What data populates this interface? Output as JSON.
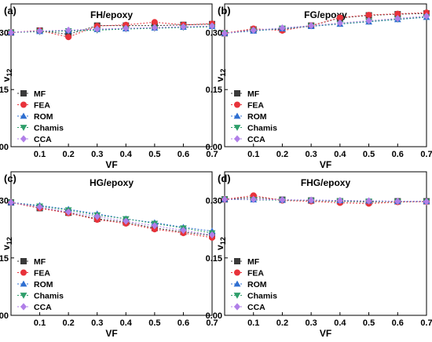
{
  "colors": {
    "MF": "#3a3a3a",
    "FEA": "#e8323a",
    "ROM": "#2f6fd1",
    "Chamis": "#2e9e6a",
    "CCA": "#b07fe8"
  },
  "chart_data": [
    {
      "type": "line",
      "panel": "(a)",
      "title": "FH/epoxy",
      "xlabel": "VF",
      "ylabel": "v12",
      "xlim": [
        0,
        0.7
      ],
      "ylim": [
        0,
        0.375
      ],
      "xticks": [
        "0.1",
        "0.2",
        "0.3",
        "0.4",
        "0.5",
        "0.6",
        "0.7"
      ],
      "yticks": [
        "0.00",
        "0.15",
        "0.30"
      ],
      "x": [
        0.0,
        0.1,
        0.2,
        0.3,
        0.4,
        0.5,
        0.6,
        0.7
      ],
      "legend_position": "bottom-left",
      "series": [
        {
          "name": "MF",
          "marker": "square",
          "values": [
            0.3,
            0.305,
            0.295,
            0.318,
            0.318,
            0.318,
            0.32,
            0.322
          ]
        },
        {
          "name": "FEA",
          "marker": "circle",
          "values": [
            0.3,
            0.305,
            0.288,
            0.317,
            0.32,
            0.327,
            0.32,
            0.323
          ]
        },
        {
          "name": "ROM",
          "marker": "triangle-up",
          "values": [
            0.3,
            0.303,
            0.305,
            0.308,
            0.31,
            0.312,
            0.314,
            0.316
          ]
        },
        {
          "name": "Chamis",
          "marker": "triangle-down",
          "values": [
            0.3,
            0.302,
            0.304,
            0.306,
            0.309,
            0.311,
            0.313,
            0.315
          ]
        },
        {
          "name": "CCA",
          "marker": "diamond",
          "values": [
            0.3,
            0.304,
            0.306,
            0.309,
            0.311,
            0.313,
            0.315,
            0.317
          ]
        }
      ]
    },
    {
      "type": "line",
      "panel": "(b)",
      "title": "FG/epoxy",
      "xlabel": "VF",
      "ylabel": "v12",
      "xlim": [
        0,
        0.7
      ],
      "ylim": [
        0,
        0.375
      ],
      "xticks": [
        "0.1",
        "0.2",
        "0.3",
        "0.4",
        "0.5",
        "0.6",
        "0.7"
      ],
      "yticks": [
        "0.00",
        "0.15",
        "0.30"
      ],
      "x": [
        0.0,
        0.1,
        0.2,
        0.3,
        0.4,
        0.5,
        0.6,
        0.7
      ],
      "legend_position": "bottom-left",
      "series": [
        {
          "name": "MF",
          "marker": "square",
          "values": [
            0.298,
            0.308,
            0.308,
            0.318,
            0.338,
            0.345,
            0.348,
            0.35
          ]
        },
        {
          "name": "FEA",
          "marker": "circle",
          "values": [
            0.298,
            0.31,
            0.305,
            0.318,
            0.339,
            0.346,
            0.349,
            0.352
          ]
        },
        {
          "name": "ROM",
          "marker": "triangle-up",
          "values": [
            0.298,
            0.304,
            0.31,
            0.316,
            0.322,
            0.328,
            0.334,
            0.34
          ]
        },
        {
          "name": "Chamis",
          "marker": "triangle-down",
          "values": [
            0.298,
            0.305,
            0.311,
            0.317,
            0.323,
            0.329,
            0.335,
            0.341
          ]
        },
        {
          "name": "CCA",
          "marker": "diamond",
          "values": [
            0.298,
            0.306,
            0.312,
            0.318,
            0.325,
            0.331,
            0.337,
            0.343
          ]
        }
      ]
    },
    {
      "type": "line",
      "panel": "(c)",
      "title": "HG/epoxy",
      "xlabel": "VF",
      "ylabel": "v12",
      "xlim": [
        0,
        0.7
      ],
      "ylim": [
        0,
        0.375
      ],
      "xticks": [
        "0.1",
        "0.2",
        "0.3",
        "0.4",
        "0.5",
        "0.6",
        "0.7"
      ],
      "yticks": [
        "0.00",
        "0.15",
        "0.30"
      ],
      "x": [
        0.0,
        0.1,
        0.2,
        0.3,
        0.4,
        0.5,
        0.6,
        0.7
      ],
      "legend_position": "bottom-left",
      "series": [
        {
          "name": "MF",
          "marker": "square",
          "values": [
            0.295,
            0.28,
            0.268,
            0.252,
            0.243,
            0.228,
            0.218,
            0.208
          ]
        },
        {
          "name": "FEA",
          "marker": "circle",
          "values": [
            0.295,
            0.28,
            0.267,
            0.25,
            0.24,
            0.225,
            0.215,
            0.203
          ]
        },
        {
          "name": "ROM",
          "marker": "triangle-up",
          "values": [
            0.295,
            0.287,
            0.277,
            0.265,
            0.252,
            0.242,
            0.23,
            0.22
          ]
        },
        {
          "name": "Chamis",
          "marker": "triangle-down",
          "values": [
            0.295,
            0.285,
            0.275,
            0.262,
            0.252,
            0.24,
            0.228,
            0.215
          ]
        },
        {
          "name": "CCA",
          "marker": "diamond",
          "values": [
            0.295,
            0.283,
            0.27,
            0.258,
            0.246,
            0.234,
            0.222,
            0.21
          ]
        }
      ]
    },
    {
      "type": "line",
      "panel": "(d)",
      "title": "FHG/epoxy",
      "xlabel": "VF",
      "ylabel": "v12",
      "xlim": [
        0,
        0.7
      ],
      "ylim": [
        0,
        0.375
      ],
      "xticks": [
        "0.1",
        "0.2",
        "0.3",
        "0.4",
        "0.5",
        "0.6",
        "0.7"
      ],
      "yticks": [
        "0.00",
        "0.15",
        "0.30"
      ],
      "x": [
        0.0,
        0.1,
        0.2,
        0.3,
        0.4,
        0.5,
        0.6,
        0.7
      ],
      "legend_position": "bottom-left",
      "series": [
        {
          "name": "MF",
          "marker": "square",
          "values": [
            0.303,
            0.308,
            0.302,
            0.3,
            0.298,
            0.296,
            0.298,
            0.298
          ]
        },
        {
          "name": "FEA",
          "marker": "circle",
          "values": [
            0.303,
            0.313,
            0.3,
            0.298,
            0.294,
            0.292,
            0.296,
            0.297
          ]
        },
        {
          "name": "ROM",
          "marker": "triangle-up",
          "values": [
            0.303,
            0.302,
            0.301,
            0.301,
            0.3,
            0.299,
            0.298,
            0.298
          ]
        },
        {
          "name": "Chamis",
          "marker": "triangle-down",
          "values": [
            0.303,
            0.302,
            0.301,
            0.3,
            0.299,
            0.298,
            0.297,
            0.297
          ]
        },
        {
          "name": "CCA",
          "marker": "diamond",
          "values": [
            0.303,
            0.303,
            0.302,
            0.301,
            0.3,
            0.299,
            0.298,
            0.297
          ]
        }
      ]
    }
  ]
}
